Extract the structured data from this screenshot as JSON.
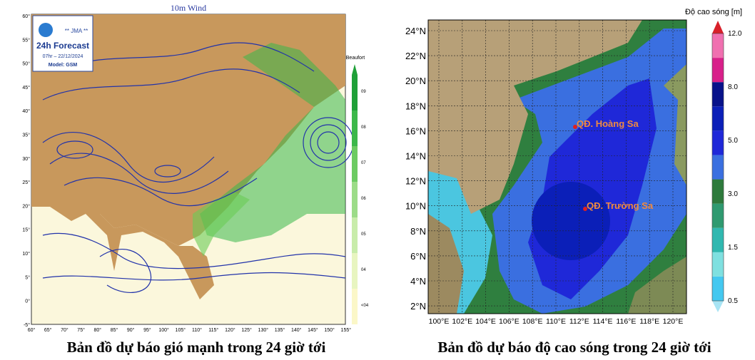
{
  "left_map": {
    "title": "10m Wind",
    "logo": "** JMA **",
    "forecast": "24h Forecast",
    "time": "07hr – 22/12/2024",
    "model": "Model: GSM",
    "colorbar_title": "Beaufort",
    "colorbar_labels": [
      "<04",
      "04",
      "05",
      "06",
      "07",
      "08",
      "09"
    ],
    "lat_labels": [
      "60°",
      "55°",
      "50°",
      "45°",
      "40°",
      "35°",
      "30°",
      "25°",
      "20°",
      "15°",
      "10°",
      "5°",
      "0°",
      "-5°"
    ],
    "lon_labels": [
      "60°",
      "65°",
      "70°",
      "75°",
      "80°",
      "85°",
      "90°",
      "95°",
      "100°",
      "105°",
      "110°",
      "115°",
      "120°",
      "125°",
      "130°",
      "135°",
      "140°",
      "145°",
      "150°",
      "155°"
    ],
    "caption": "Bản đồ dự báo gió mạnh trong 24 giờ tới"
  },
  "right_map": {
    "colorbar_title": "Độ cao sóng [m]",
    "colorbar_labels": [
      "0.5",
      "1.5",
      "3.0",
      "5.0",
      "8.0",
      "12.0"
    ],
    "lat_labels": [
      "24°N",
      "22°N",
      "20°N",
      "18°N",
      "16°N",
      "14°N",
      "12°N",
      "10°N",
      "8°N",
      "6°N",
      "4°N",
      "2°N"
    ],
    "lon_labels": [
      "100°E",
      "102°E",
      "104°E",
      "106°E",
      "108°E",
      "110°E",
      "112°E",
      "114°E",
      "116°E",
      "118°E",
      "120°E"
    ],
    "places": [
      "QĐ. Hoàng Sa",
      "QĐ. Trường Sa"
    ],
    "caption": "Bản đồ dự báo độ cao sóng trong 24 giờ tới"
  }
}
